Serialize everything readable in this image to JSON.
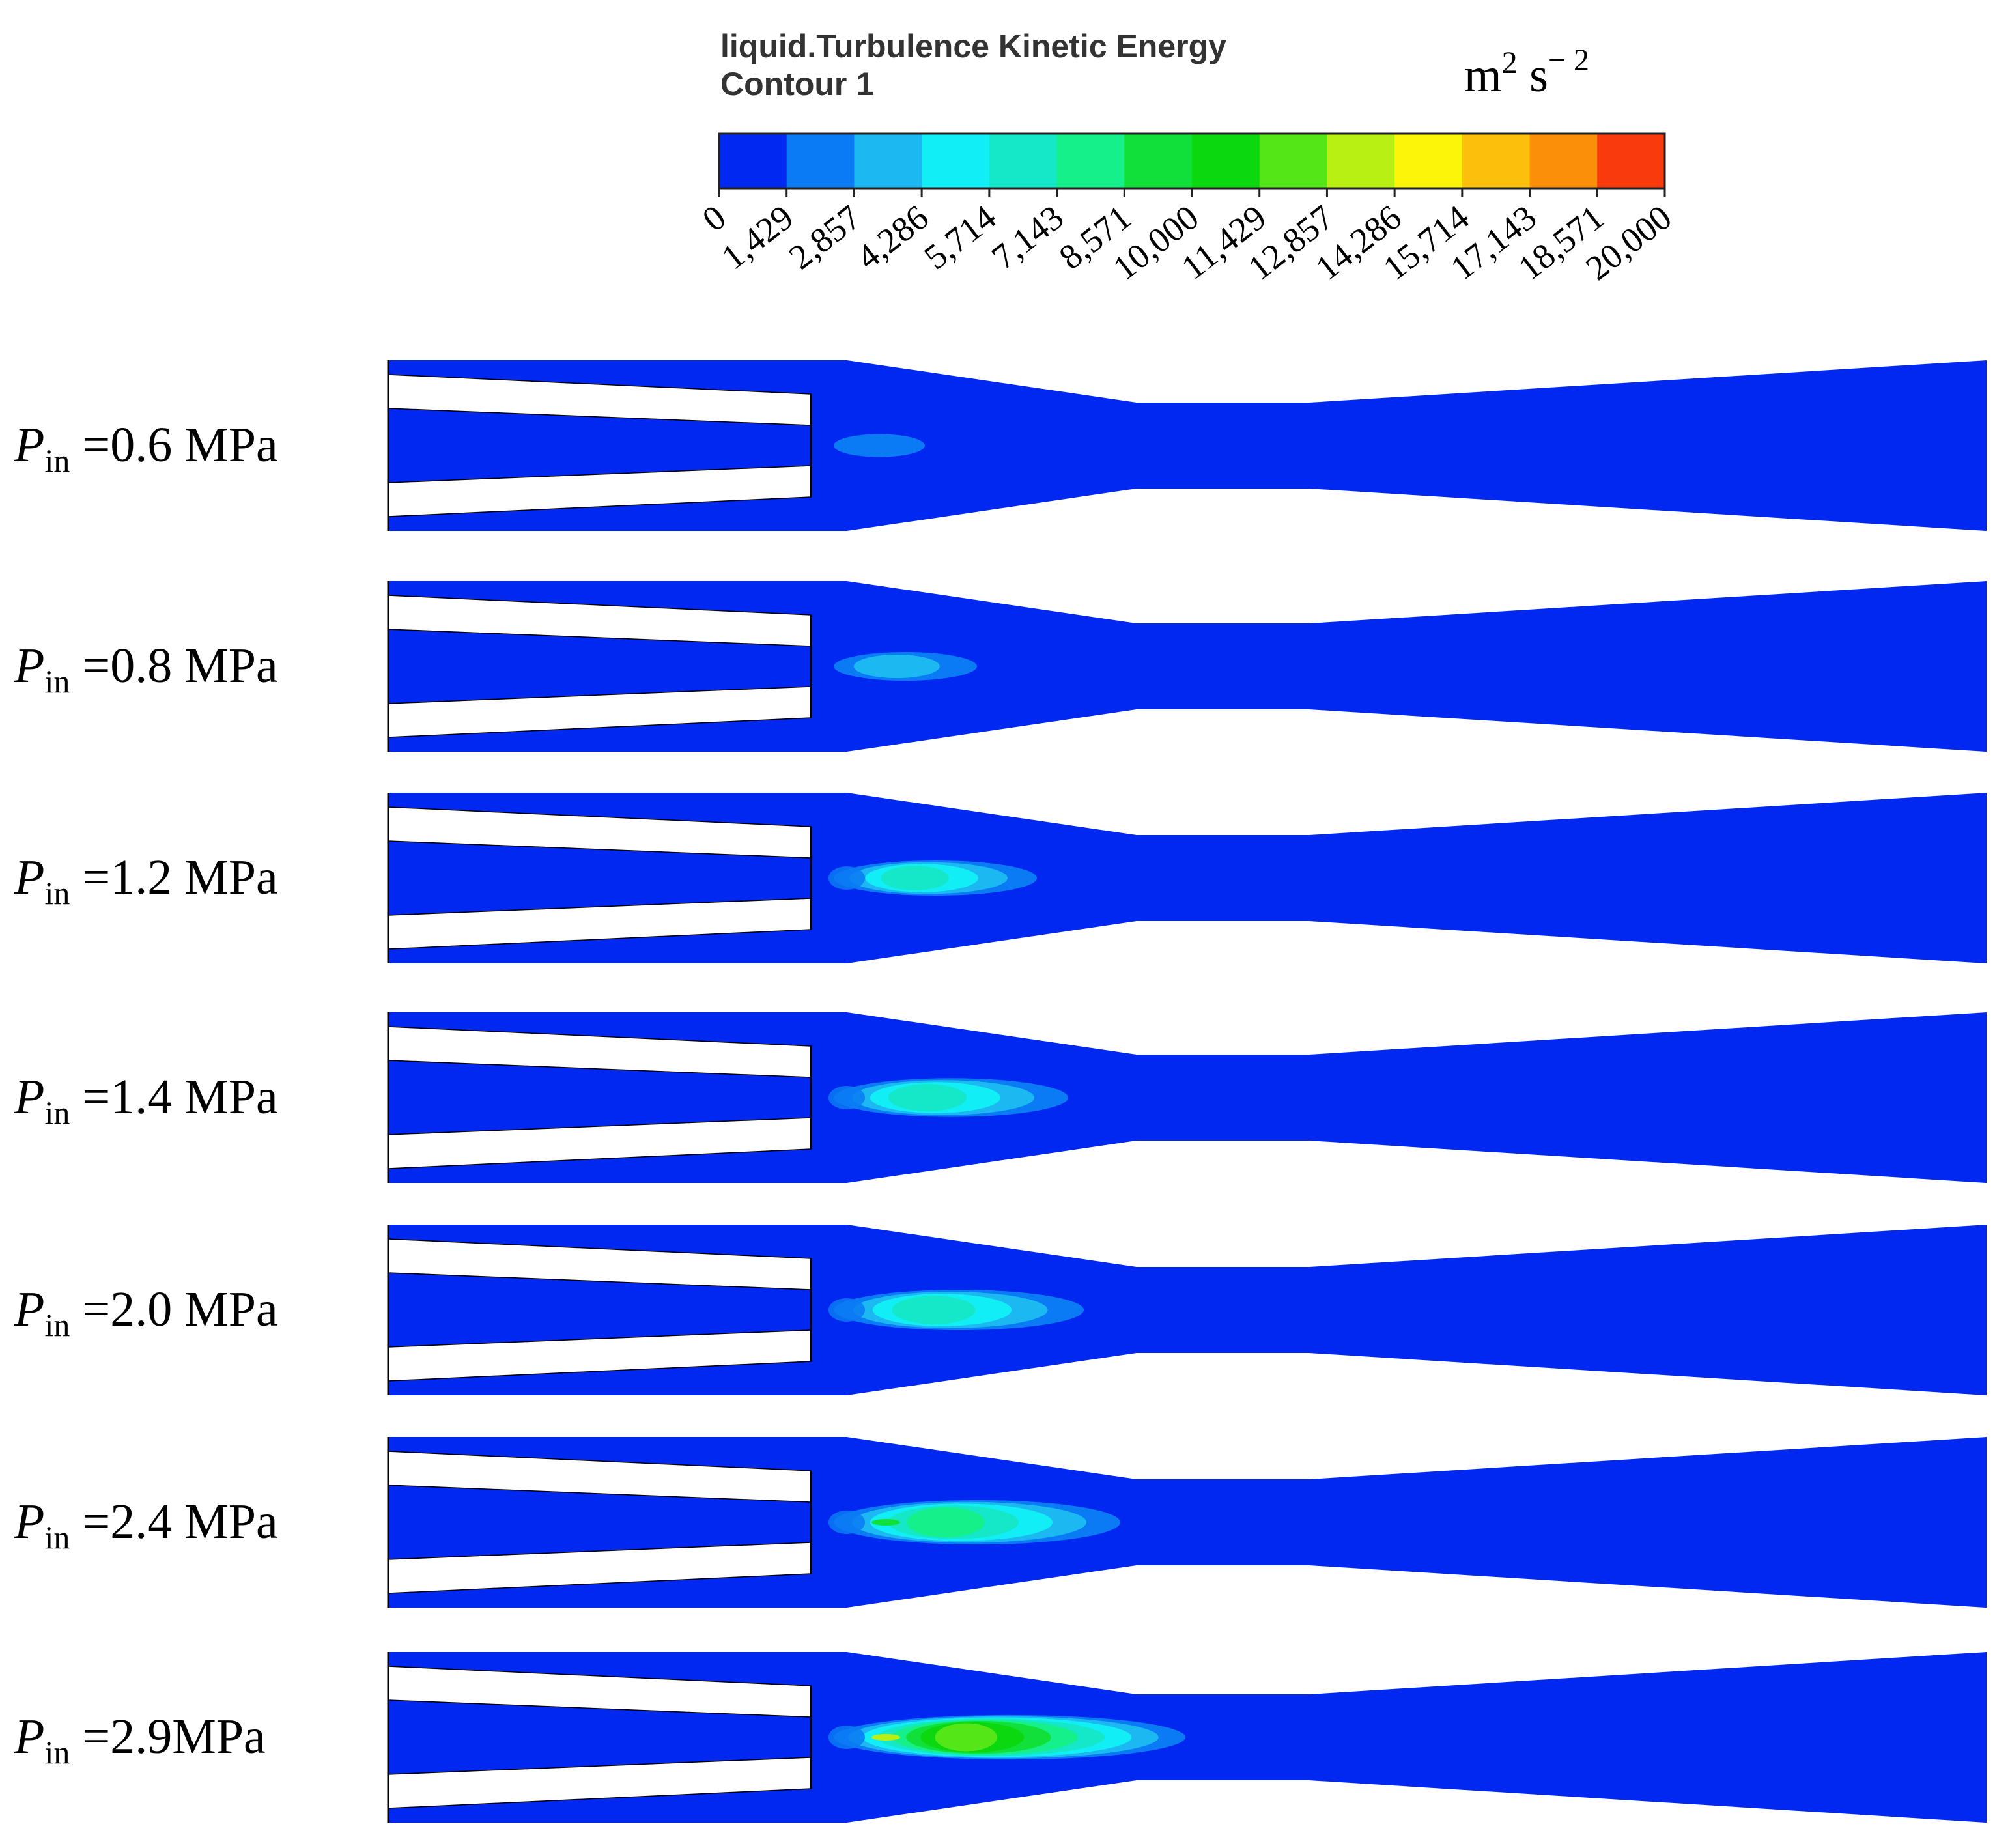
{
  "legend": {
    "title_line1": "liquid.Turbulence Kinetic Energy",
    "title_line2": "Contour 1",
    "unit": {
      "base": "m",
      "sup1": "2",
      "mid": " s",
      "sup2": "− 2"
    },
    "colors": [
      "#0028f0",
      "#0a7af5",
      "#1bb8f2",
      "#12eef5",
      "#14e8c8",
      "#15f08a",
      "#12e03a",
      "#0bd80e",
      "#55e618",
      "#b8f014",
      "#fcf50a",
      "#fbbf0c",
      "#fb8f0a",
      "#f83a0c"
    ],
    "ticks": [
      "0",
      "1,429",
      "2,857",
      "4,286",
      "5,714",
      "7,143",
      "8,571",
      "10,000",
      "11,429",
      "12,857",
      "14,286",
      "15,714",
      "17,143",
      "18,571",
      "20,000"
    ]
  },
  "cases": [
    {
      "label_main": "P",
      "label_sub": "in",
      "label_value": " =0.6 MPa",
      "plume_reach": 0.35,
      "plume_max_level": 1
    },
    {
      "label_main": "P",
      "label_sub": "in",
      "label_value": " =0.8 MPa",
      "plume_reach": 0.55,
      "plume_max_level": 2
    },
    {
      "label_main": "P",
      "label_sub": "in",
      "label_value": " =1.2 MPa",
      "plume_reach": 0.78,
      "plume_max_level": 4
    },
    {
      "label_main": "P",
      "label_sub": "in",
      "label_value": " =1.4 MPa",
      "plume_reach": 0.9,
      "plume_max_level": 4
    },
    {
      "label_main": "P",
      "label_sub": "in",
      "label_value": " =2.0 MPa",
      "plume_reach": 0.96,
      "plume_max_level": 4
    },
    {
      "label_main": "P",
      "label_sub": "in",
      "label_value": " =2.4 MPa",
      "plume_reach": 1.1,
      "plume_max_level": 5
    },
    {
      "label_main": "P",
      "label_sub": "in",
      "label_value": " =2.9MPa",
      "plume_reach": 1.35,
      "plume_max_level": 8
    }
  ]
}
